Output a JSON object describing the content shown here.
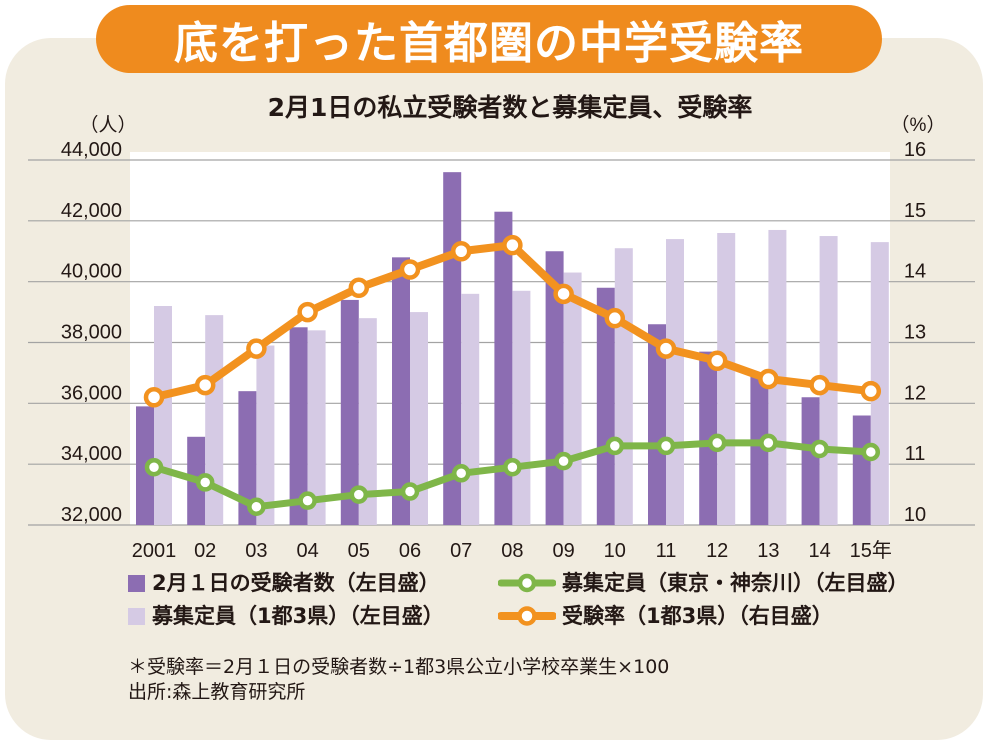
{
  "headline": "底を打った首都圏の中学受験率",
  "colors": {
    "banner": "#ef8b1e",
    "panel": "#f1ece0",
    "plot_background": "#ffffff",
    "grid": "#a3a3a3"
  },
  "chart_data": {
    "type": "bar",
    "title": "2月1日の私立受験者数と募集定員、受験率",
    "categories": [
      "2001",
      "02",
      "03",
      "04",
      "05",
      "06",
      "07",
      "08",
      "09",
      "10",
      "11",
      "12",
      "13",
      "14",
      "15年"
    ],
    "y_left": {
      "label": "（人）",
      "range": [
        32000,
        44000
      ],
      "tick_labels": [
        "44,000",
        "42,000",
        "40,000",
        "38,000",
        "36,000",
        "34,000",
        "32,000"
      ]
    },
    "y_right": {
      "label": "（%）",
      "range": [
        10,
        16
      ],
      "tick_labels": [
        "16",
        "15",
        "14",
        "13",
        "12",
        "11",
        "10"
      ]
    },
    "grid": true,
    "legend_placement": "bottom",
    "series": [
      {
        "name": "2月１日の受験者数（左目盛）",
        "type": "bar",
        "axis": "left",
        "color": "#8c6db2",
        "values": [
          35900,
          34900,
          36400,
          38500,
          39400,
          40800,
          43600,
          42300,
          41000,
          39800,
          38600,
          37700,
          36900,
          36200,
          35600
        ]
      },
      {
        "name": "募集定員（東京・神奈川）（左目盛）",
        "type": "line",
        "axis": "left",
        "color": "#7fb649",
        "values": [
          33900,
          33400,
          32600,
          32800,
          33000,
          33100,
          33700,
          33900,
          34100,
          34600,
          34600,
          34700,
          34700,
          34500,
          34400
        ]
      },
      {
        "name": "募集定員（1都3県）（左目盛）",
        "type": "bar",
        "axis": "left",
        "color": "#d5cae4",
        "values": [
          39200,
          38900,
          37900,
          38400,
          38800,
          39000,
          39600,
          39700,
          40300,
          41100,
          41400,
          41600,
          41700,
          41500,
          41300
        ]
      },
      {
        "name": "受験率（1都3県）（右目盛）",
        "type": "line",
        "axis": "right",
        "color": "#f2921f",
        "values": [
          12.1,
          12.3,
          12.9,
          13.5,
          13.9,
          14.2,
          14.5,
          14.6,
          13.8,
          13.4,
          12.9,
          12.7,
          12.4,
          12.3,
          12.2
        ]
      }
    ]
  },
  "notes": [
    "＊受験率＝2月１日の受験者数÷1都3県公立小学校卒業生×100",
    "出所:森上教育研究所"
  ]
}
